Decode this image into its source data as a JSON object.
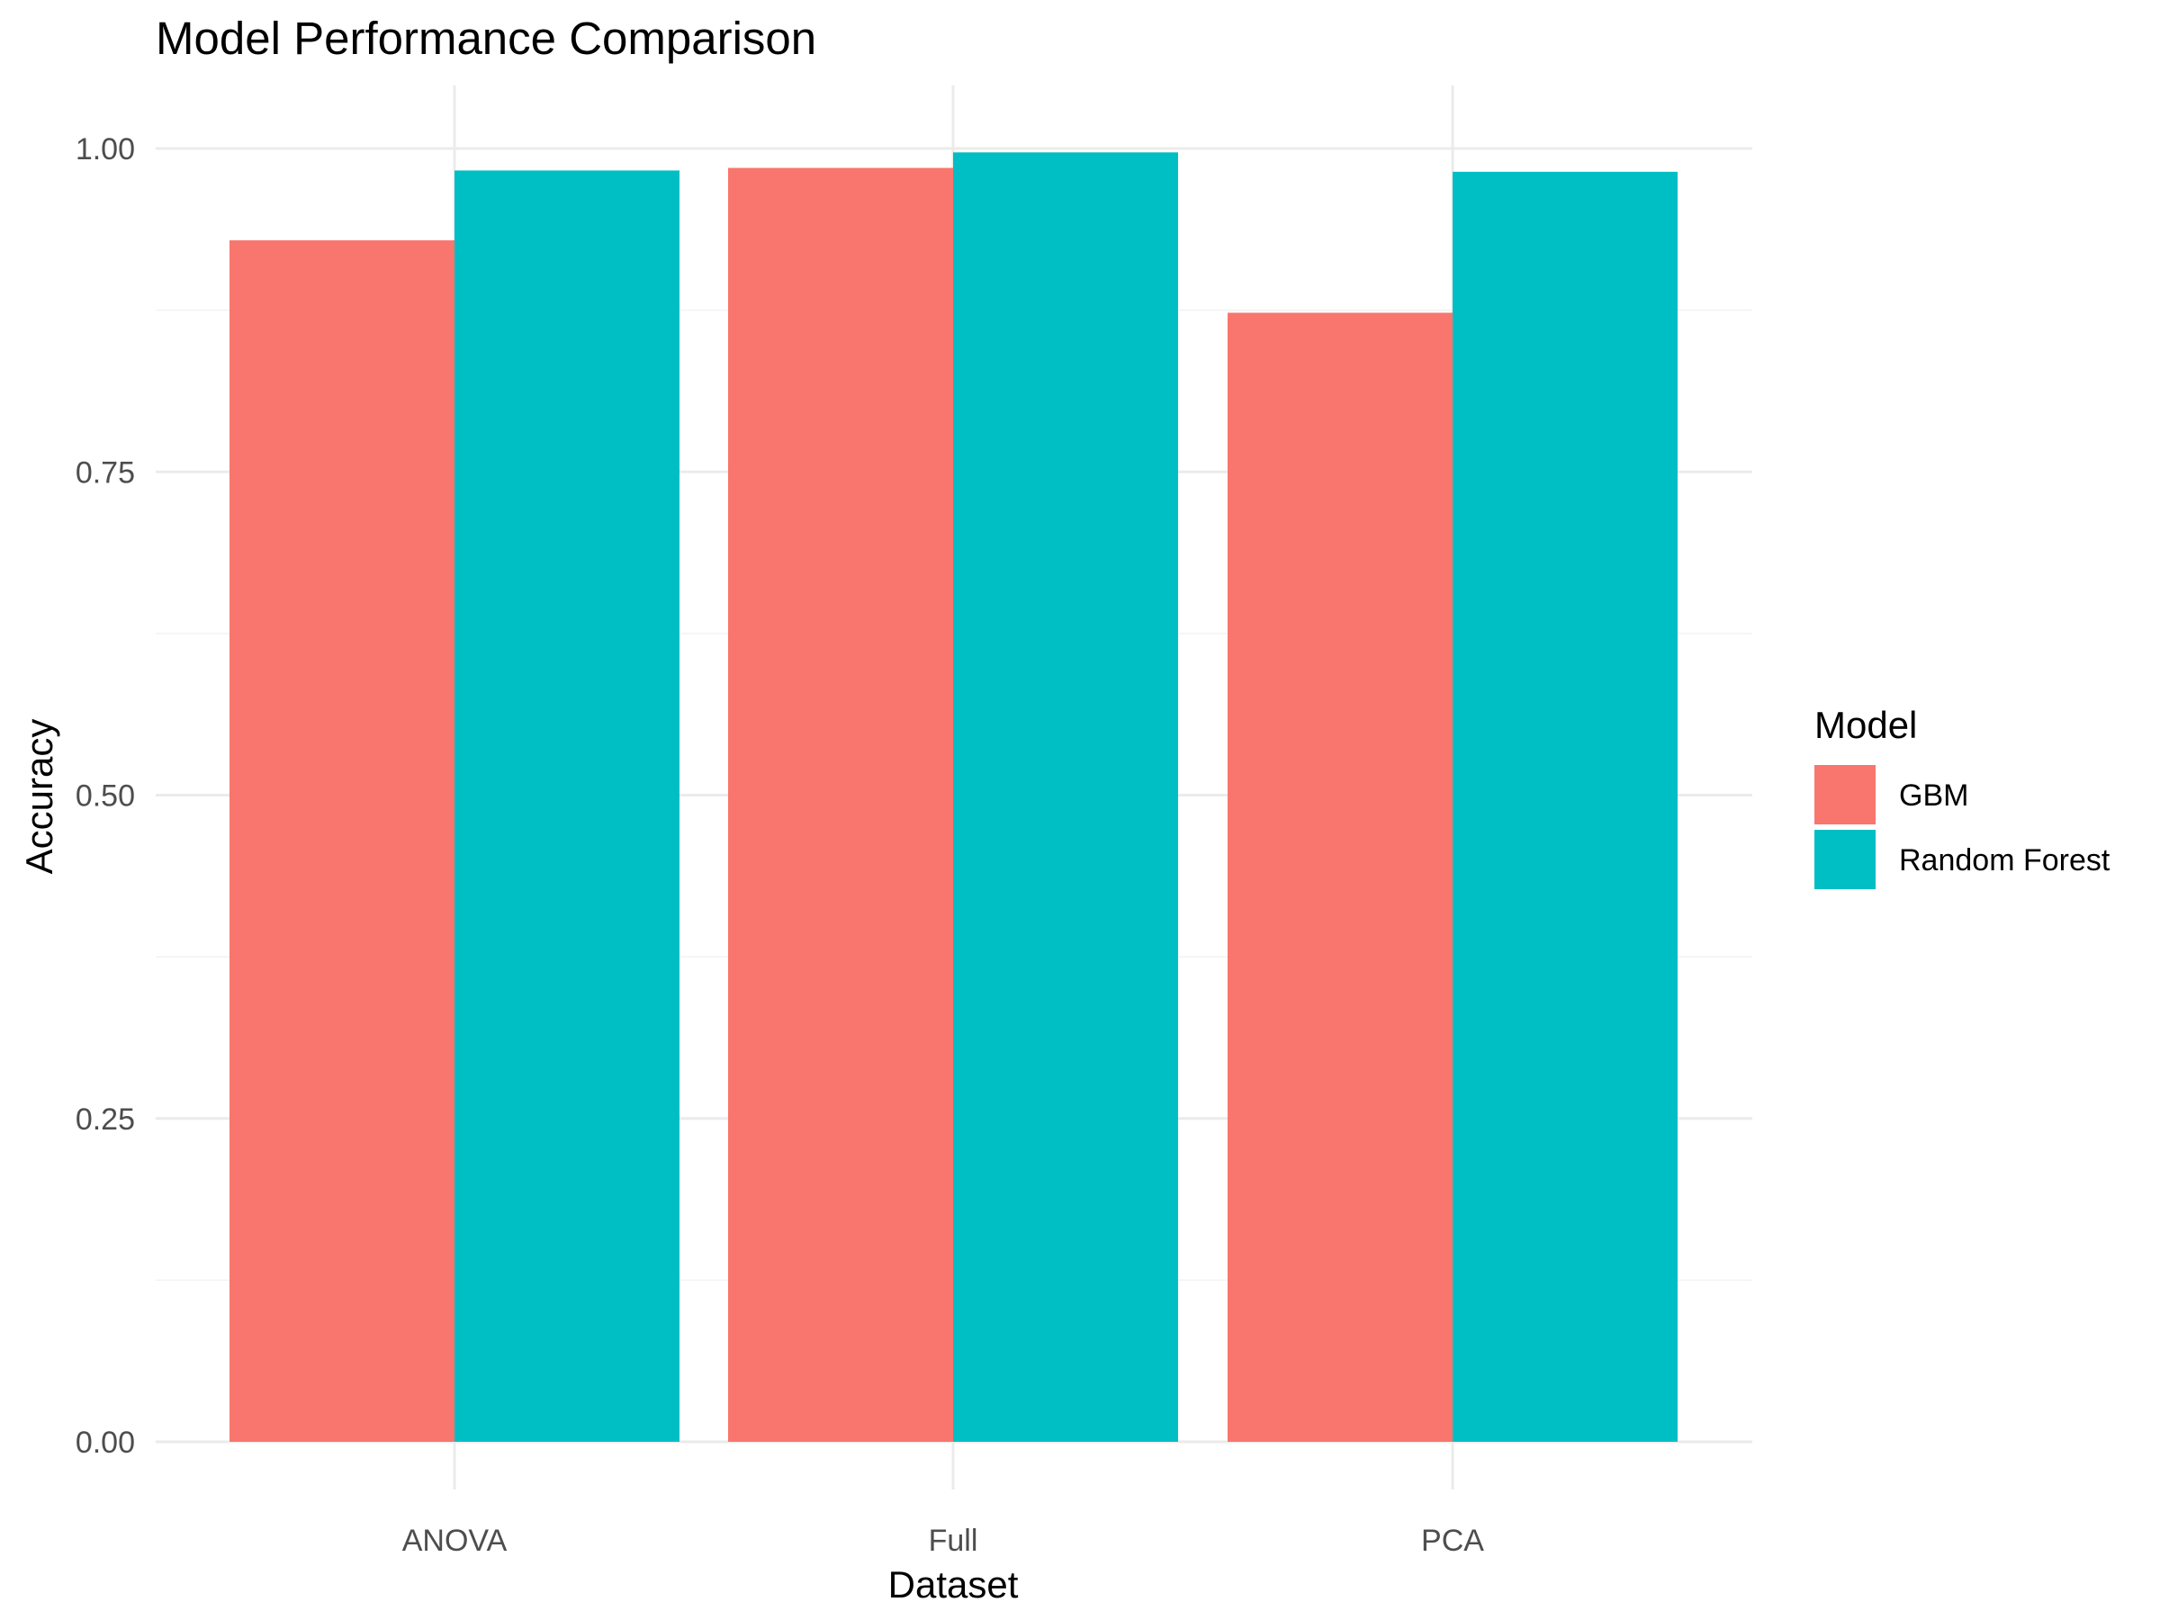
{
  "chart_data": {
    "type": "bar",
    "title": "Model Performance Comparison",
    "xlabel": "Dataset",
    "ylabel": "Accuracy",
    "categories": [
      "ANOVA",
      "Full",
      "PCA"
    ],
    "series": [
      {
        "name": "GBM",
        "values": [
          0.929,
          0.985,
          0.873
        ],
        "color": "#F8766D"
      },
      {
        "name": "Random Forest",
        "values": [
          0.983,
          0.997,
          0.982
        ],
        "color": "#00BFC4"
      }
    ],
    "ylim": [
      0,
      1.0
    ],
    "yticks": [
      0.0,
      0.25,
      0.5,
      0.75,
      1.0
    ],
    "ytick_labels": [
      "0.00",
      "0.25",
      "0.50",
      "0.75",
      "1.00"
    ],
    "grid": true,
    "legend": {
      "title": "Model",
      "position": "right"
    }
  }
}
